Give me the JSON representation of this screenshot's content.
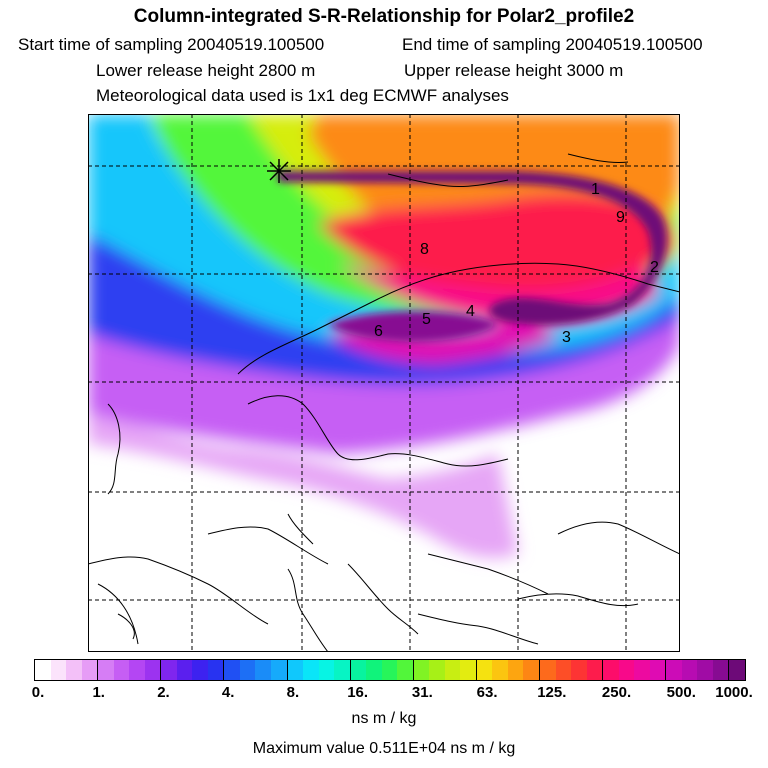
{
  "header": {
    "title": "Column-integrated S-R-Relationship for Polar2_profile2",
    "start_time": "Start time of sampling 20040519.100500",
    "end_time": "End time of sampling 20040519.100500",
    "lower_height": "Lower release height 2800 m",
    "upper_height": "Upper release height 3000 m",
    "met_data": "Meteorological data used is 1x1 deg ECMWF analyses"
  },
  "map": {
    "trajectory_labels": [
      "1",
      "9",
      "8",
      "2",
      "6",
      "5",
      "4",
      "3"
    ],
    "release_marker": "x-marker-icon"
  },
  "colorbar": {
    "tick_labels": [
      "0.",
      "1.",
      "2.",
      "4.",
      "8.",
      "16.",
      "31.",
      "63.",
      "125.",
      "250.",
      "500.",
      "1000."
    ],
    "colors": [
      "#ffffff",
      "#fbe3fb",
      "#f3c0f8",
      "#e69cf6",
      "#d67df5",
      "#c65ef4",
      "#b446f3",
      "#9c33f0",
      "#7f26ee",
      "#5b1fee",
      "#3d22f0",
      "#2833f1",
      "#2050f3",
      "#1d6ff5",
      "#1a8cf8",
      "#16aafb",
      "#10c8fc",
      "#0ae5f8",
      "#07f4e4",
      "#07f4c4",
      "#08f39f",
      "#10f37b",
      "#27f55a",
      "#52f63a",
      "#80f324",
      "#a7f017",
      "#c8ee12",
      "#e3ec10",
      "#f5e210",
      "#fbc510",
      "#fda510",
      "#fd8614",
      "#fd6a1c",
      "#fd4e27",
      "#fd3434",
      "#fd1c4c",
      "#fd0d6a",
      "#f8098a",
      "#ed0aa0",
      "#df0bb3",
      "#cc0cb7",
      "#b70cb2",
      "#a00ca5",
      "#870b92",
      "#6d0a78"
    ],
    "unit": "ns m / kg",
    "max_value": "Maximum value  0.511E+04 ns m / kg"
  }
}
